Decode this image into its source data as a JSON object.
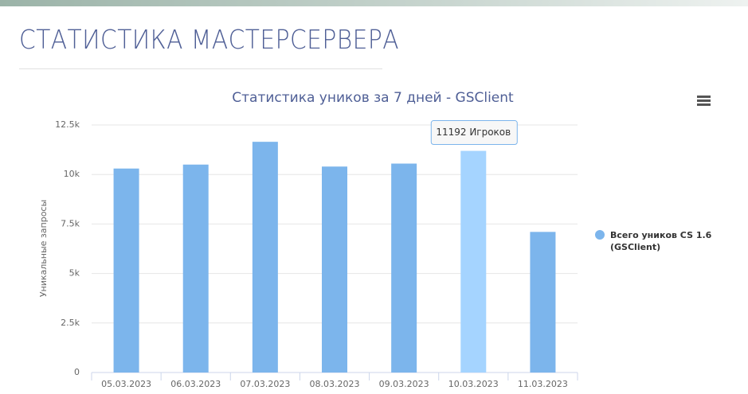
{
  "header": {
    "title": "СТАТИСТИКА МАСТЕРСЕРВЕРА"
  },
  "chart_data": {
    "type": "bar",
    "title": "Статистика уников за 7 дней - GSClient",
    "y_axis_label": "Уникальные запросы",
    "categories": [
      "05.03.2023",
      "06.03.2023",
      "07.03.2023",
      "08.03.2023",
      "09.03.2023",
      "10.03.2023",
      "11.03.2023"
    ],
    "series": [
      {
        "name": "Всего уников CS 1.6 (GSClient)",
        "color": "#7cb5ec",
        "values": [
          10300,
          10500,
          11650,
          10400,
          10550,
          11192,
          7100
        ]
      }
    ],
    "ylim": [
      0,
      12500
    ],
    "yticks": [
      0,
      {
        "value": 2500,
        "label": "2.5k"
      },
      {
        "value": 5000,
        "label": "5k"
      },
      {
        "value": 7500,
        "label": "7.5k"
      },
      {
        "value": 10000,
        "label": "10k"
      },
      {
        "value": 12500,
        "label": "12.5k"
      }
    ],
    "grid": true,
    "legend": "right",
    "tooltip": {
      "label": "11192 Игроков",
      "color": "#a5d4ff"
    }
  }
}
